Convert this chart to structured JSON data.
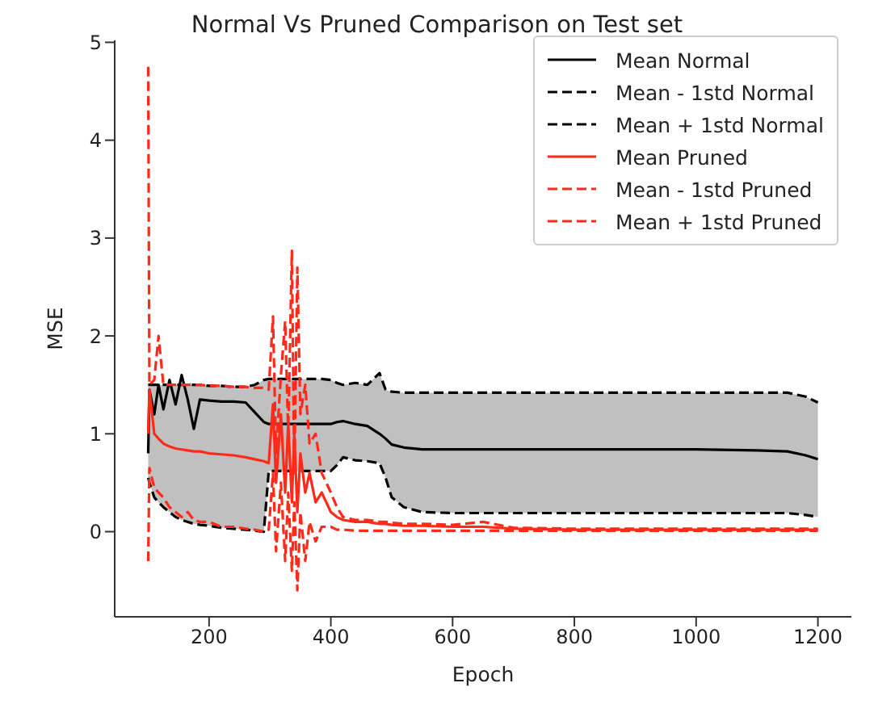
{
  "chart_data": {
    "type": "line",
    "title": "Normal Vs Pruned Comparison on Test set",
    "xlabel": "Epoch",
    "ylabel": "MSE",
    "x": [
      100,
      102,
      110,
      117,
      125,
      135,
      145,
      155,
      165,
      175,
      185,
      200,
      220,
      240,
      260,
      275,
      290,
      298,
      305,
      310,
      318,
      325,
      330,
      336,
      340,
      345,
      350,
      358,
      365,
      375,
      385,
      400,
      410,
      420,
      440,
      460,
      480,
      490,
      500,
      520,
      550,
      600,
      650,
      700,
      800,
      900,
      1000,
      1100,
      1150,
      1180,
      1200
    ],
    "series": [
      {
        "name": "Mean Normal",
        "color": "#000000",
        "line_style": "solid",
        "values": [
          0.8,
          1.45,
          1.2,
          1.5,
          1.25,
          1.55,
          1.3,
          1.6,
          1.35,
          1.05,
          1.35,
          1.34,
          1.33,
          1.33,
          1.32,
          1.22,
          1.12,
          1.1,
          1.1,
          1.1,
          1.1,
          1.1,
          1.1,
          1.1,
          1.1,
          1.1,
          1.1,
          1.1,
          1.1,
          1.1,
          1.1,
          1.1,
          1.12,
          1.13,
          1.1,
          1.08,
          1.0,
          0.95,
          0.89,
          0.86,
          0.84,
          0.84,
          0.84,
          0.84,
          0.84,
          0.84,
          0.84,
          0.83,
          0.82,
          0.78,
          0.74
        ],
        "lower": [
          0.55,
          0.5,
          0.35,
          0.3,
          0.25,
          0.2,
          0.15,
          0.12,
          0.1,
          0.08,
          0.07,
          0.06,
          0.04,
          0.03,
          0.02,
          0.01,
          0.0,
          0.62,
          0.62,
          0.62,
          0.62,
          0.62,
          0.62,
          0.62,
          0.62,
          0.62,
          0.62,
          0.62,
          0.62,
          0.62,
          0.62,
          0.62,
          0.68,
          0.76,
          0.73,
          0.72,
          0.7,
          0.55,
          0.35,
          0.25,
          0.2,
          0.19,
          0.19,
          0.19,
          0.19,
          0.19,
          0.19,
          0.19,
          0.19,
          0.17,
          0.15
        ],
        "upper": [
          1.5,
          1.5,
          1.5,
          1.5,
          1.5,
          1.5,
          1.5,
          1.5,
          1.5,
          1.5,
          1.5,
          1.49,
          1.49,
          1.48,
          1.48,
          1.5,
          1.55,
          1.56,
          1.56,
          1.56,
          1.56,
          1.56,
          1.56,
          1.56,
          1.56,
          1.56,
          1.56,
          1.56,
          1.56,
          1.56,
          1.56,
          1.55,
          1.52,
          1.5,
          1.52,
          1.5,
          1.62,
          1.45,
          1.43,
          1.42,
          1.42,
          1.42,
          1.42,
          1.42,
          1.42,
          1.42,
          1.42,
          1.42,
          1.42,
          1.38,
          1.32
        ]
      },
      {
        "name": "Mean - 1std Normal",
        "color": "#000000",
        "line_style": "dashed",
        "values": [
          0.55,
          0.5,
          0.35,
          0.3,
          0.25,
          0.2,
          0.15,
          0.12,
          0.1,
          0.08,
          0.07,
          0.06,
          0.04,
          0.03,
          0.02,
          0.01,
          0.0,
          0.62,
          0.62,
          0.62,
          0.62,
          0.62,
          0.62,
          0.62,
          0.62,
          0.62,
          0.62,
          0.62,
          0.62,
          0.62,
          0.62,
          0.62,
          0.68,
          0.76,
          0.73,
          0.72,
          0.7,
          0.55,
          0.35,
          0.25,
          0.2,
          0.19,
          0.19,
          0.19,
          0.19,
          0.19,
          0.19,
          0.19,
          0.19,
          0.17,
          0.15
        ]
      },
      {
        "name": "Mean + 1std Normal",
        "color": "#000000",
        "line_style": "dashed",
        "values": [
          1.5,
          1.5,
          1.5,
          1.5,
          1.5,
          1.5,
          1.5,
          1.5,
          1.5,
          1.5,
          1.5,
          1.49,
          1.49,
          1.48,
          1.48,
          1.5,
          1.55,
          1.56,
          1.56,
          1.56,
          1.56,
          1.56,
          1.56,
          1.56,
          1.56,
          1.56,
          1.56,
          1.56,
          1.56,
          1.56,
          1.56,
          1.55,
          1.52,
          1.5,
          1.52,
          1.5,
          1.62,
          1.45,
          1.43,
          1.42,
          1.42,
          1.42,
          1.42,
          1.42,
          1.42,
          1.42,
          1.42,
          1.42,
          1.42,
          1.38,
          1.32
        ]
      },
      {
        "name": "Mean Pruned",
        "color": "#ff2a1a",
        "line_style": "solid",
        "values": [
          1.0,
          1.45,
          1.0,
          0.95,
          0.9,
          0.87,
          0.85,
          0.84,
          0.83,
          0.82,
          0.82,
          0.8,
          0.79,
          0.78,
          0.76,
          0.74,
          0.72,
          0.7,
          1.3,
          0.5,
          1.2,
          0.4,
          1.1,
          0.3,
          1.0,
          0.2,
          0.8,
          0.4,
          0.6,
          0.3,
          0.4,
          0.2,
          0.15,
          0.12,
          0.1,
          0.1,
          0.08,
          0.08,
          0.07,
          0.06,
          0.06,
          0.05,
          0.05,
          0.03,
          0.02,
          0.02,
          0.02,
          0.02,
          0.02,
          0.02,
          0.02
        ]
      },
      {
        "name": "Mean - 1std Pruned",
        "color": "#ff2a1a",
        "line_style": "dashed",
        "values": [
          -0.3,
          0.65,
          0.45,
          0.4,
          0.35,
          0.25,
          0.2,
          0.15,
          0.2,
          0.12,
          0.1,
          0.1,
          0.05,
          0.05,
          0.03,
          0.02,
          0.0,
          0.02,
          0.6,
          -0.2,
          0.5,
          -0.3,
          0.4,
          -0.4,
          0.3,
          -0.6,
          0.2,
          -0.3,
          0.1,
          -0.1,
          0.05,
          0.05,
          0.02,
          0.02,
          0.01,
          0.01,
          0.01,
          0.01,
          0.01,
          0.01,
          0.01,
          0.01,
          0.01,
          0.01,
          0.01,
          0.01,
          0.01,
          0.01,
          0.01,
          0.01,
          0.01
        ]
      },
      {
        "name": "Mean + 1std Pruned",
        "color": "#ff2a1a",
        "line_style": "dashed",
        "values": [
          4.75,
          1.5,
          1.55,
          2.0,
          1.5,
          1.5,
          1.5,
          1.5,
          1.5,
          1.5,
          1.5,
          1.49,
          1.49,
          1.48,
          1.48,
          1.47,
          1.47,
          1.45,
          2.2,
          0.8,
          1.6,
          2.15,
          1.0,
          2.87,
          0.6,
          2.7,
          1.2,
          1.5,
          0.9,
          1.0,
          0.6,
          0.4,
          0.25,
          0.15,
          0.12,
          0.12,
          0.1,
          0.1,
          0.09,
          0.08,
          0.08,
          0.07,
          0.1,
          0.04,
          0.03,
          0.03,
          0.03,
          0.03,
          0.03,
          0.03,
          0.03
        ]
      }
    ],
    "xlim": [
      45,
      1255
    ],
    "xticks": [
      200,
      400,
      600,
      800,
      1000,
      1200
    ],
    "ylim": [
      -0.87,
      5.02
    ],
    "yticks": [
      0,
      1,
      2,
      3,
      4,
      5
    ],
    "grid": false,
    "legend": "top right",
    "marker": "none"
  }
}
